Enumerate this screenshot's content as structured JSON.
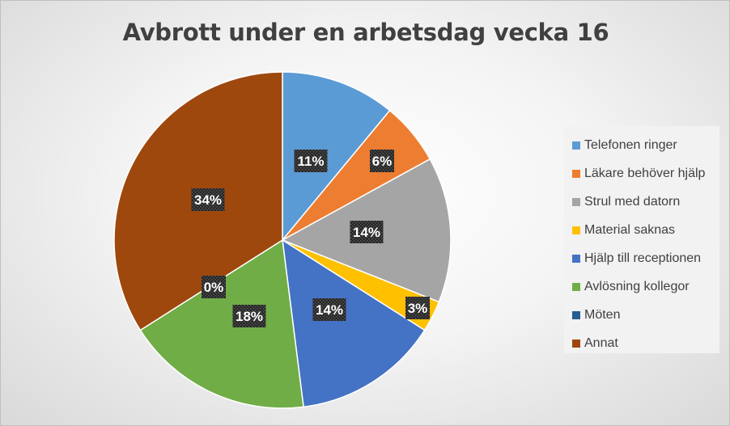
{
  "chart_data": {
    "type": "pie",
    "title": "Avbrott under en arbetsdag vecka 16",
    "categories": [
      "Telefonen ringer",
      "Läkare behöver hjälp",
      "Strul med datorn",
      "Material saknas",
      "Hjälp till receptionen",
      "Avlösning kollegor",
      "Möten",
      "Annat"
    ],
    "values": [
      11,
      6,
      14,
      3,
      14,
      18,
      0,
      34
    ],
    "labels": [
      "11%",
      "6%",
      "14%",
      "3%",
      "14%",
      "18%",
      "0%",
      "34%"
    ],
    "colors": [
      "#5b9bd5",
      "#ed7d31",
      "#a5a5a5",
      "#ffc000",
      "#4472c4",
      "#70ad47",
      "#255e91",
      "#9e480e"
    ],
    "legend_position": "right"
  }
}
